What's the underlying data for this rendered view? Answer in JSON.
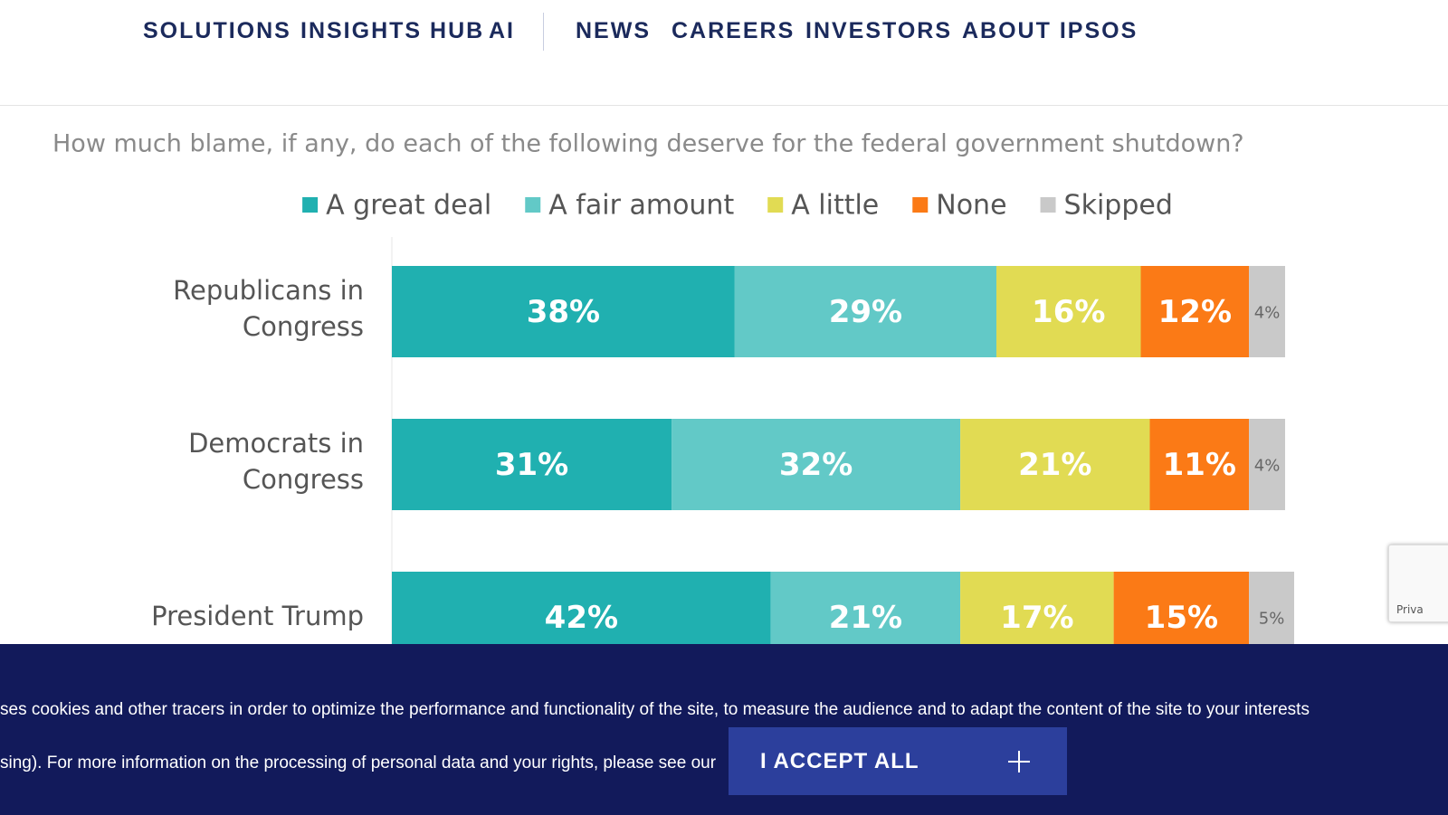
{
  "nav": {
    "items": [
      "SOLUTIONS",
      "INSIGHTS HUB",
      "AI",
      "NEWS",
      "CAREERS",
      "INVESTORS",
      "ABOUT IPSOS"
    ]
  },
  "chart_data": {
    "type": "stacked-bar-horizontal",
    "title": "How much blame, if any, do each of the following deserve for the federal government shutdown?",
    "categories": [
      "Republicans in Congress",
      "Democrats in Congress",
      "President Trump"
    ],
    "xlim": [
      0,
      100
    ],
    "series": [
      {
        "name": "A great deal",
        "color": "#20b0b0",
        "values": [
          38,
          31,
          42
        ],
        "value_labels": [
          "38%",
          "31%",
          "42%"
        ]
      },
      {
        "name": "A fair amount",
        "color": "#62c9c7",
        "values": [
          29,
          32,
          21
        ],
        "value_labels": [
          "29%",
          "32%",
          "21%"
        ]
      },
      {
        "name": "A little",
        "color": "#e1db53",
        "values": [
          16,
          21,
          17
        ],
        "value_labels": [
          "16%",
          "21%",
          "17%"
        ]
      },
      {
        "name": "None",
        "color": "#fb7a16",
        "values": [
          12,
          11,
          15
        ],
        "value_labels": [
          "12%",
          "11%",
          "15%"
        ]
      },
      {
        "name": "Skipped",
        "color": "#c9c9c9",
        "values": [
          4,
          4,
          5
        ],
        "value_labels": [
          "4%",
          "4%",
          "5%"
        ]
      }
    ]
  },
  "cookie_banner": {
    "line1": "ses cookies and other tracers in order to optimize the performance and functionality of the site, to measure the audience and to adapt the content of the site to your interests",
    "line2": "sing). For more information on the processing of personal data and your rights, please see our",
    "button": "I ACCEPT ALL"
  },
  "recaptcha": {
    "label": "Priva"
  }
}
